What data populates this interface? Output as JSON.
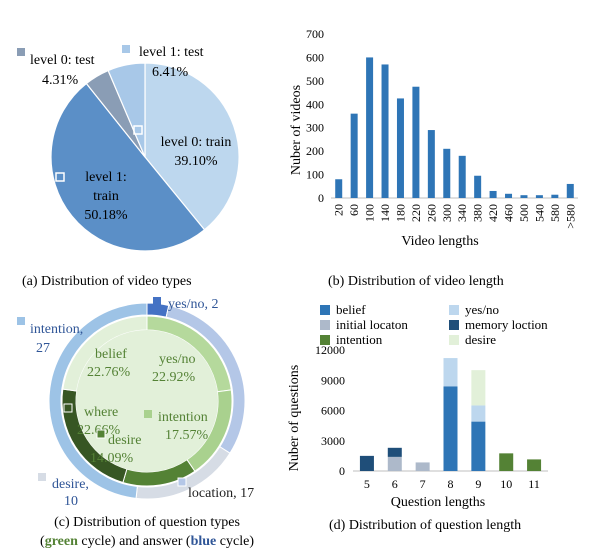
{
  "colors": {
    "level0_test": "#8a9db5",
    "level1_test": "#a8c8e8",
    "level0_train": "#bdd7ee",
    "level1_train": "#5b8fc7",
    "bar_blue": "#2e75b6",
    "belief": "#2e75b6",
    "yes_no": "#bdd7ee",
    "initial_location": "#adb9ca",
    "memory_location": "#1f4e79",
    "intention": "#548235",
    "desire": "#e2f0d9",
    "green_text": "#548235",
    "blue_text": "#2f5597"
  },
  "captions": {
    "a": "(a) Distribution of video types",
    "b": "(b) Distribution of video length",
    "c_line1": "(c) Distribution of question types",
    "c_line2_part1": "(",
    "c_line2_green": "green",
    "c_line2_part2": " cycle) and answer (",
    "c_line2_blue": "blue",
    "c_line2_part3": " cycle)",
    "d": "(d) Distribution of question length"
  },
  "chart_data": [
    {
      "type": "pie",
      "slices": [
        {
          "label_line1": "level 0: train",
          "label_line2": "39.10%",
          "value": 39.1,
          "color_key": "level0_train"
        },
        {
          "label_line1": "level 1:",
          "label_line2": "train",
          "label_line3": "50.18%",
          "value": 50.18,
          "color_key": "level1_train"
        },
        {
          "label_line1": "level 0: test",
          "label_line2": "4.31%",
          "value": 4.31,
          "color_key": "level0_test"
        },
        {
          "label_line1": "level 1: test",
          "label_line2": "6.41%",
          "value": 6.41,
          "color_key": "level1_test"
        }
      ]
    },
    {
      "type": "bar",
      "categories": [
        "20",
        "60",
        "100",
        "140",
        "180",
        "220",
        "260",
        "300",
        "340",
        "380",
        "420",
        "460",
        "500",
        "540",
        "580",
        ">580"
      ],
      "values": [
        80,
        360,
        600,
        570,
        425,
        475,
        290,
        210,
        180,
        95,
        30,
        18,
        12,
        12,
        14,
        60
      ],
      "xlabel": "Video lengths",
      "ylabel": "Nuber  of videos",
      "yticks": [
        0,
        100,
        200,
        300,
        400,
        500,
        600,
        700
      ],
      "ylim": [
        0,
        700
      ]
    },
    {
      "type": "pie",
      "inner_ring": [
        {
          "label_line1": "yes/no",
          "label_line2": "22.92%",
          "value": 22.92,
          "color": "#b5d99c"
        },
        {
          "label_line1": "intention",
          "label_line2": "17.57%",
          "value": 17.57,
          "color": "#a9d18e"
        },
        {
          "label_line1": "desire",
          "label_line2": "14.09%",
          "value": 14.09,
          "color": "#548235"
        },
        {
          "label_line1": "where",
          "label_line2": "22.66%",
          "value": 22.66,
          "color": "#375623"
        },
        {
          "label_line1": "belief",
          "label_line2": "22.76%",
          "value": 22.76,
          "color": "#e2f0d9"
        }
      ],
      "outer_ring": [
        {
          "label": "yes/no, 2",
          "value": 2,
          "color": "#4472c4"
        },
        {
          "label": "location, 17",
          "value": 17,
          "color": "#b4c7e7"
        },
        {
          "label_line1": "desire,",
          "label_line2": "10",
          "value": 10,
          "color": "#d6dce5"
        },
        {
          "label_line1": "intention,",
          "label_line2": "27",
          "value": 27,
          "color": "#9dc3e6"
        }
      ]
    },
    {
      "type": "bar",
      "stacked": true,
      "categories": [
        "5",
        "6",
        "7",
        "8",
        "9",
        "10",
        "11"
      ],
      "series": [
        {
          "name": "belief",
          "values": [
            0,
            0,
            0,
            8400,
            4900,
            0,
            0
          ]
        },
        {
          "name": "yes/no",
          "values": [
            0,
            0,
            0,
            2800,
            1600,
            0,
            0
          ]
        },
        {
          "name": "initial locaton",
          "values": [
            0,
            1400,
            850,
            0,
            0,
            0,
            0
          ]
        },
        {
          "name": "memory loction",
          "values": [
            1500,
            900,
            0,
            0,
            0,
            0,
            0
          ]
        },
        {
          "name": "intention",
          "values": [
            0,
            0,
            0,
            0,
            0,
            1750,
            1150
          ]
        },
        {
          "name": "desire",
          "values": [
            0,
            0,
            0,
            0,
            3500,
            0,
            0
          ]
        }
      ],
      "xlabel": "Question lengths",
      "ylabel": "Nuber of questions",
      "yticks": [
        0,
        3000,
        6000,
        9000,
        12000
      ],
      "ylim": [
        0,
        12000
      ]
    }
  ]
}
